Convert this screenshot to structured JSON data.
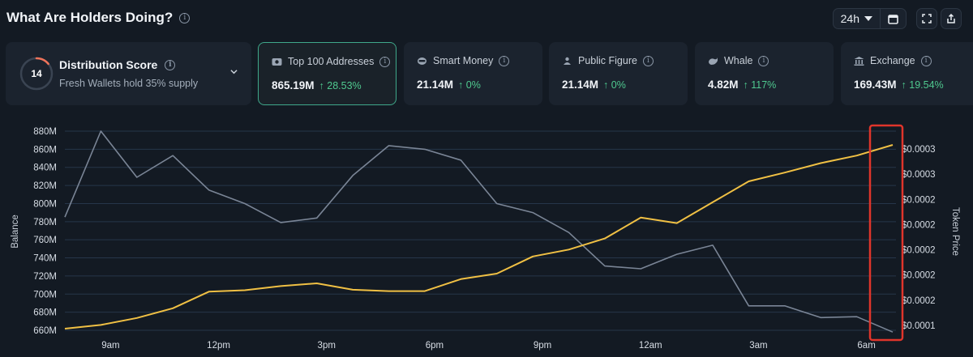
{
  "header": {
    "title": "What Are Holders Doing?"
  },
  "controls": {
    "timeframe": "24h"
  },
  "score_card": {
    "score": "14",
    "score_fraction": 0.14,
    "title": "Distribution Score",
    "subtitle": "Fresh Wallets hold 35% supply"
  },
  "metrics": [
    {
      "label": "Top 100 Addresses",
      "value": "865.19M",
      "change": "↑ 28.53%",
      "icon": "wallet-icon",
      "selected": true
    },
    {
      "label": "Smart Money",
      "value": "21.14M",
      "change": "↑ 0%",
      "icon": "smart-money-icon",
      "selected": false
    },
    {
      "label": "Public Figure",
      "value": "21.14M",
      "change": "↑ 0%",
      "icon": "public-figure-icon",
      "selected": false
    },
    {
      "label": "Whale",
      "value": "4.82M",
      "change": "↑ 117%",
      "icon": "whale-icon",
      "selected": false
    },
    {
      "label": "Exchange",
      "value": "169.43M",
      "change": "↑ 19.54%",
      "icon": "exchange-icon",
      "selected": false
    }
  ],
  "colors": {
    "balance_line": "#7a8596",
    "price_line": "#f0c044",
    "positive": "#4fc98f",
    "highlight_box": "#e0352b",
    "selected_border": "#3fa88a"
  },
  "chart_data": {
    "type": "line",
    "xlabel": "",
    "ylabel": "Balance",
    "y2label": "Token Price",
    "x_ticks": [
      "9am",
      "12pm",
      "3pm",
      "6pm",
      "9pm",
      "12am",
      "3am",
      "6am"
    ],
    "y_ticks": [
      "660M",
      "680M",
      "700M",
      "720M",
      "740M",
      "760M",
      "780M",
      "800M",
      "820M",
      "840M",
      "860M",
      "880M"
    ],
    "y2_ticks": [
      "$0.0001",
      "$0.0002",
      "$0.0002",
      "$0.0002",
      "$0.0002",
      "$0.0002",
      "$0.0003",
      "$0.0003"
    ],
    "ylim": [
      660,
      880
    ],
    "grid": true,
    "series": [
      {
        "key": "balance",
        "axis": "left",
        "color": "#7a8596",
        "x": [
          0,
          1,
          2,
          3,
          4,
          5,
          6,
          7,
          8,
          9,
          10,
          11,
          12,
          13,
          14,
          15,
          16,
          17,
          18,
          19,
          20,
          21,
          22,
          23
        ],
        "values": [
          785,
          880,
          829,
          853,
          815,
          800,
          779,
          784,
          831,
          864,
          860,
          848,
          800,
          790,
          768,
          731,
          728,
          744,
          754,
          687,
          687,
          674,
          675,
          658
        ]
      },
      {
        "key": "price",
        "axis": "right",
        "color": "#f0c044",
        "x": [
          0,
          1,
          2,
          3,
          4,
          5,
          6,
          7,
          8,
          9,
          10,
          11,
          12,
          13,
          14,
          15,
          16,
          17,
          18,
          19,
          20,
          21,
          22,
          23
        ],
        "values": [
          8.47e-05,
          8.85e-05,
          9.55e-05,
          0.0001053,
          0.0001221,
          0.0001235,
          0.0001277,
          0.0001305,
          0.000124,
          0.0001226,
          0.0001226,
          0.0001347,
          0.0001403,
          0.0001576,
          0.0001646,
          0.0001758,
          0.0001969,
          0.0001913,
          0.0002124,
          0.0002335,
          0.0002423,
          0.0002519,
          0.0002595,
          0.0002703
        ]
      }
    ]
  }
}
